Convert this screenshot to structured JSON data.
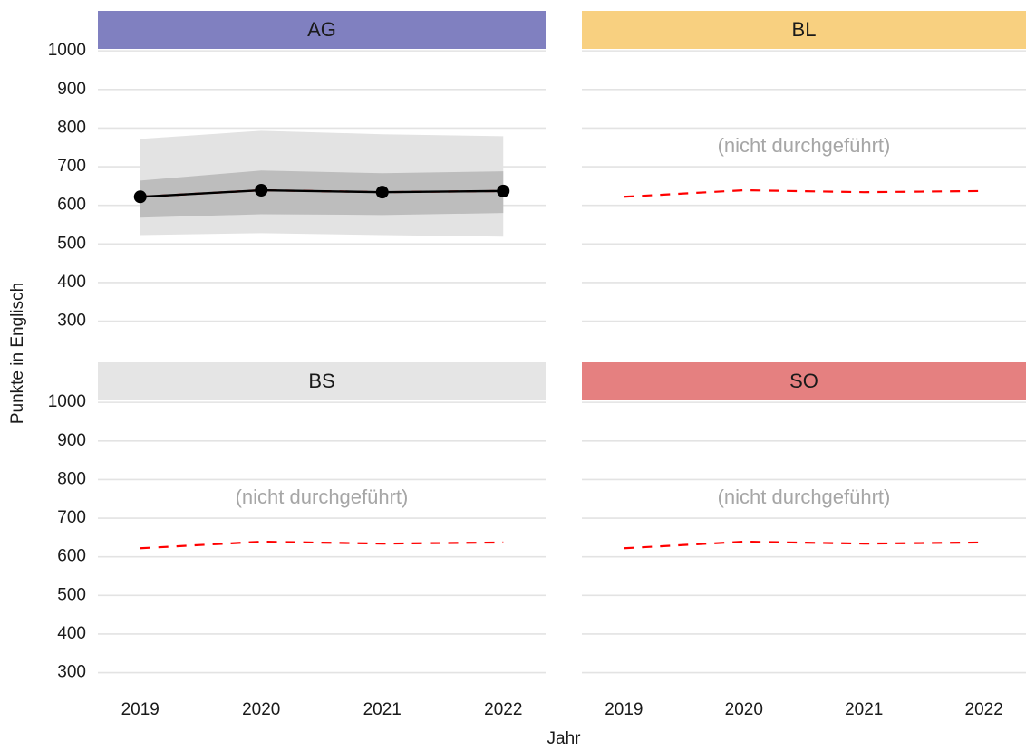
{
  "axes": {
    "x_label": "Jahr",
    "y_label": "Punkte in Englisch"
  },
  "chart_data": [
    {
      "type": "line",
      "title": "AG",
      "strip_color": "#8080c0",
      "x": [
        2019,
        2020,
        2021,
        2022
      ],
      "xlim": [
        2018.65,
        2022.35
      ],
      "ylim": [
        245,
        1005
      ],
      "yticks": [
        300,
        400,
        500,
        600,
        700,
        800,
        900,
        1000
      ],
      "grid": true,
      "bands": [
        {
          "color": "#e3e3e3",
          "lower": [
            523,
            528,
            523,
            519
          ],
          "upper": [
            772,
            793,
            784,
            779
          ]
        },
        {
          "color": "#bdbdbd",
          "lower": [
            568,
            577,
            575,
            580
          ],
          "upper": [
            664,
            690,
            683,
            688
          ]
        }
      ],
      "series": [
        {
          "color": "#ff0000",
          "dashed": true,
          "values": [
            622,
            639,
            634,
            637
          ]
        },
        {
          "color": "#000000",
          "markers": true,
          "values": [
            622,
            639,
            634,
            637
          ]
        }
      ]
    },
    {
      "type": "line",
      "title": "BL",
      "strip_color": "#f8d080",
      "x": [
        2019,
        2020,
        2021,
        2022
      ],
      "xlim": [
        2018.65,
        2022.35
      ],
      "ylim": [
        245,
        1005
      ],
      "yticks": [
        300,
        400,
        500,
        600,
        700,
        800,
        900,
        1000
      ],
      "grid": true,
      "annotation": "(nicht durchgeführt)",
      "series": [
        {
          "color": "#ff0000",
          "dashed": true,
          "values": [
            622,
            639,
            634,
            637
          ]
        }
      ]
    },
    {
      "type": "line",
      "title": "BS",
      "strip_color": "#e5e5e5",
      "x": [
        2019,
        2020,
        2021,
        2022
      ],
      "xlim": [
        2018.65,
        2022.35
      ],
      "xticks": [
        2019,
        2020,
        2021,
        2022
      ],
      "ylim": [
        245,
        1005
      ],
      "yticks": [
        300,
        400,
        500,
        600,
        700,
        800,
        900,
        1000
      ],
      "grid": true,
      "annotation": "(nicht durchgeführt)",
      "series": [
        {
          "color": "#ff0000",
          "dashed": true,
          "values": [
            622,
            639,
            634,
            637
          ]
        }
      ]
    },
    {
      "type": "line",
      "title": "SO",
      "strip_color": "#e58080",
      "x": [
        2019,
        2020,
        2021,
        2022
      ],
      "xlim": [
        2018.65,
        2022.35
      ],
      "xticks": [
        2019,
        2020,
        2021,
        2022
      ],
      "ylim": [
        245,
        1005
      ],
      "yticks": [
        300,
        400,
        500,
        600,
        700,
        800,
        900,
        1000
      ],
      "grid": true,
      "annotation": "(nicht durchgeführt)",
      "series": [
        {
          "color": "#ff0000",
          "dashed": true,
          "values": [
            622,
            639,
            634,
            637
          ]
        }
      ]
    }
  ]
}
